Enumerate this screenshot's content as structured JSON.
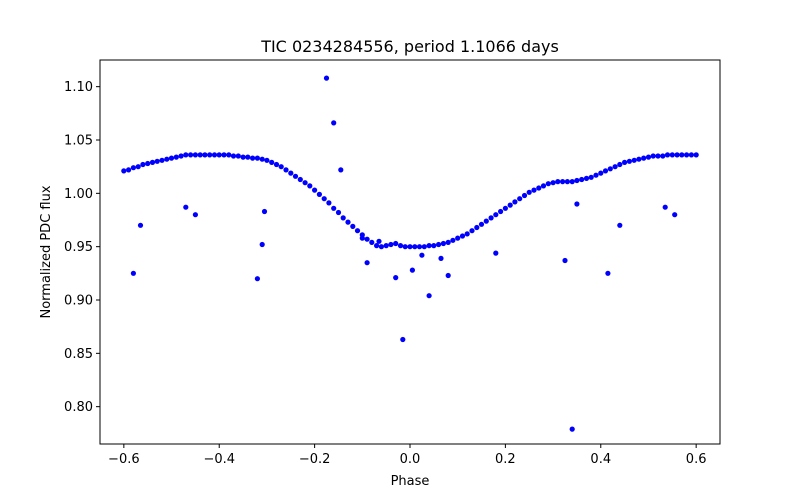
{
  "chart_data": {
    "type": "scatter",
    "title": "TIC 0234284556, period 1.1066 days",
    "xlabel": "Phase",
    "ylabel": "Normalized PDC flux",
    "xlim": [
      -0.65,
      0.65
    ],
    "ylim": [
      0.765,
      1.125
    ],
    "xticks": [
      -0.6,
      -0.4,
      -0.2,
      0.0,
      0.2,
      0.4,
      0.6
    ],
    "xtick_labels": [
      "−0.6",
      "−0.4",
      "−0.2",
      "0.0",
      "0.2",
      "0.4",
      "0.6"
    ],
    "yticks": [
      0.8,
      0.85,
      0.9,
      0.95,
      1.0,
      1.05,
      1.1
    ],
    "ytick_labels": [
      "0.80",
      "0.85",
      "0.90",
      "0.95",
      "1.00",
      "1.05",
      "1.10"
    ],
    "grid": false,
    "marker_color": "#0000ff",
    "series": [
      {
        "x": [
          -0.6,
          -0.59,
          -0.58,
          -0.57,
          -0.56,
          -0.55,
          -0.54,
          -0.53,
          -0.52,
          -0.51,
          -0.5,
          -0.49,
          -0.48,
          -0.47,
          -0.46,
          -0.45,
          -0.44,
          -0.43,
          -0.42,
          -0.41,
          -0.4,
          -0.39,
          -0.38,
          -0.37,
          -0.36,
          -0.35,
          -0.34,
          -0.33,
          -0.32,
          -0.31,
          -0.3,
          -0.29,
          -0.28,
          -0.27,
          -0.26,
          -0.25,
          -0.24,
          -0.23,
          -0.22,
          -0.21,
          -0.2,
          -0.19,
          -0.18,
          -0.17,
          -0.16,
          -0.15,
          -0.14,
          -0.13,
          -0.12,
          -0.11,
          -0.1,
          -0.09,
          -0.08,
          -0.07,
          -0.06,
          -0.05,
          -0.04,
          -0.03,
          -0.02,
          -0.01,
          0.0,
          0.01,
          0.02,
          0.03,
          0.04,
          0.05,
          0.06,
          0.07,
          0.08,
          0.09,
          0.1,
          0.11,
          0.12,
          0.13,
          0.14,
          0.15,
          0.16,
          0.17,
          0.18,
          0.19,
          0.2,
          0.21,
          0.22,
          0.23,
          0.24,
          0.25,
          0.26,
          0.27,
          0.28,
          0.29,
          0.3,
          0.31,
          0.32,
          0.33,
          0.34,
          0.35,
          0.36,
          0.37,
          0.38,
          0.39,
          0.4,
          0.41,
          0.42,
          0.43,
          0.44,
          0.45,
          0.46,
          0.47,
          0.48,
          0.49,
          0.5,
          0.51,
          0.52,
          0.53,
          0.54,
          0.55,
          0.56,
          0.57,
          0.58,
          0.59,
          0.6,
          -0.58,
          -0.565,
          -0.47,
          -0.45,
          -0.32,
          -0.31,
          -0.305,
          -0.175,
          -0.16,
          -0.145,
          -0.1,
          -0.09,
          -0.065,
          -0.03,
          -0.015,
          0.005,
          0.025,
          0.04,
          0.065,
          0.08,
          0.18,
          0.325,
          0.34,
          0.35,
          0.415,
          0.44,
          0.535,
          0.555
        ],
        "y": [
          1.021,
          1.022,
          1.024,
          1.025,
          1.027,
          1.028,
          1.029,
          1.03,
          1.031,
          1.032,
          1.033,
          1.034,
          1.035,
          1.036,
          1.036,
          1.036,
          1.036,
          1.036,
          1.036,
          1.036,
          1.036,
          1.036,
          1.036,
          1.035,
          1.035,
          1.034,
          1.034,
          1.033,
          1.033,
          1.032,
          1.031,
          1.029,
          1.027,
          1.025,
          1.022,
          1.019,
          1.016,
          1.013,
          1.01,
          1.007,
          1.003,
          0.999,
          0.995,
          0.991,
          0.986,
          0.982,
          0.977,
          0.973,
          0.969,
          0.965,
          0.961,
          0.957,
          0.954,
          0.951,
          0.95,
          0.951,
          0.952,
          0.953,
          0.951,
          0.95,
          0.95,
          0.95,
          0.95,
          0.95,
          0.951,
          0.951,
          0.952,
          0.953,
          0.954,
          0.956,
          0.958,
          0.96,
          0.962,
          0.965,
          0.968,
          0.971,
          0.974,
          0.977,
          0.98,
          0.983,
          0.986,
          0.989,
          0.992,
          0.995,
          0.998,
          1.001,
          1.003,
          1.005,
          1.007,
          1.009,
          1.01,
          1.011,
          1.011,
          1.011,
          1.011,
          1.012,
          1.013,
          1.014,
          1.015,
          1.017,
          1.019,
          1.021,
          1.023,
          1.025,
          1.027,
          1.029,
          1.03,
          1.031,
          1.032,
          1.033,
          1.034,
          1.035,
          1.035,
          1.035,
          1.036,
          1.036,
          1.036,
          1.036,
          1.036,
          1.036,
          1.036,
          0.925,
          0.97,
          0.987,
          0.98,
          0.92,
          0.952,
          0.983,
          1.108,
          1.066,
          1.022,
          0.958,
          0.935,
          0.955,
          0.921,
          0.863,
          0.928,
          0.942,
          0.904,
          0.939,
          0.923,
          0.944,
          0.937,
          0.779,
          0.99,
          0.925,
          0.97,
          0.987,
          0.98
        ]
      }
    ]
  }
}
